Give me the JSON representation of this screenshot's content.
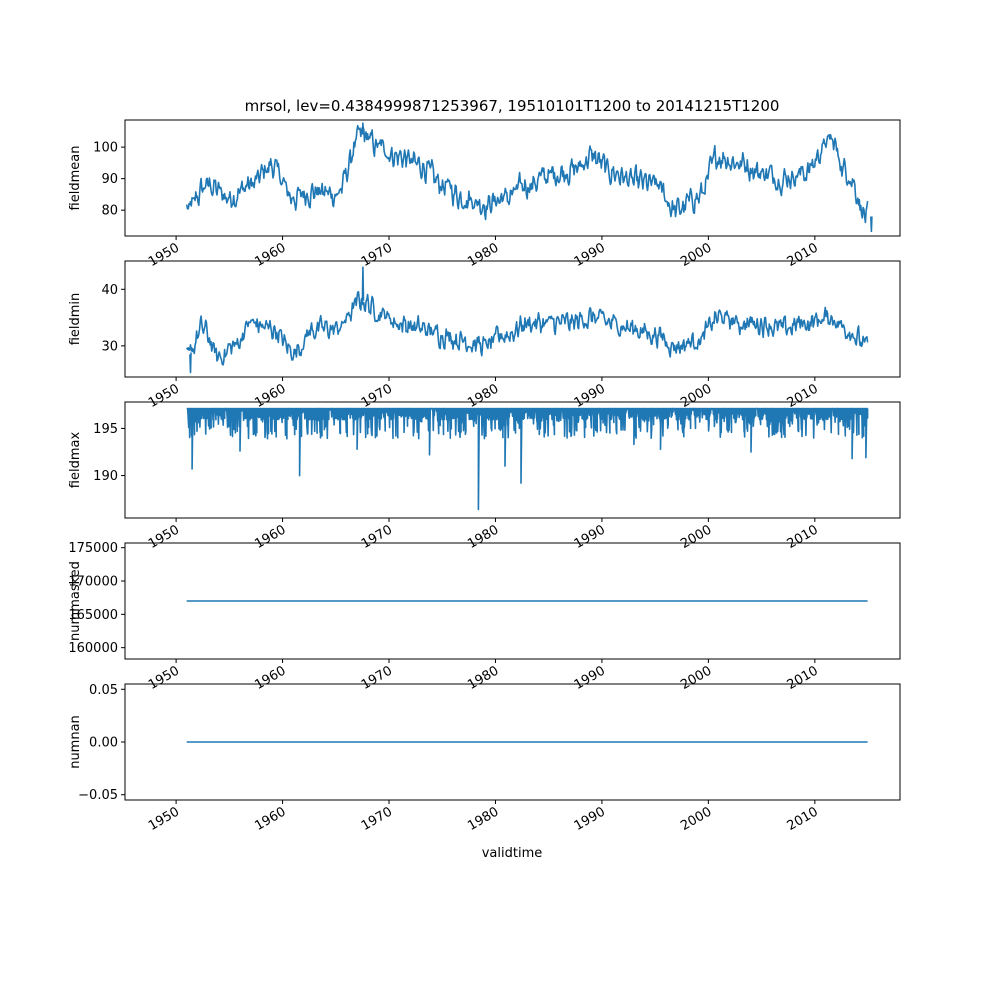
{
  "chart_data": {
    "type": "line",
    "title": "mrsol, lev=0.4384999871253967, 19510101T1200 to 20141215T1200",
    "xlabel": "validtime",
    "x_start": 1951.0,
    "x_end": 2014.96,
    "xlim": [
      1945.2,
      2018.0
    ],
    "x_ticks": [
      1950,
      1960,
      1970,
      1980,
      1990,
      2000,
      2010
    ],
    "x_ticklabels": [
      "1950",
      "1960",
      "1970",
      "1980",
      "1990",
      "2000",
      "2010"
    ],
    "series_color": "#1f77b4",
    "panels": [
      {
        "ylabel": "fieldmean",
        "ylim": [
          71.8,
          108.6
        ],
        "y_ticks": [
          80,
          90,
          100
        ],
        "y_ticklabels": [
          "80",
          "90",
          "100"
        ],
        "kind": "noisy",
        "x": [
          1951.0,
          1953.0,
          1955.0,
          1957.0,
          1959.0,
          1961.0,
          1963.0,
          1965.0,
          1967.5,
          1969.0,
          1971.0,
          1973.0,
          1975.0,
          1977.0,
          1979.0,
          1981.0,
          1983.0,
          1985.0,
          1987.5,
          1989.0,
          1991.0,
          1993.0,
          1995.0,
          1997.0,
          1999.0,
          2001.0,
          2003.0,
          2005.0,
          2007.0,
          2009.0,
          2011.5,
          2013.0,
          2014.96
        ],
        "values": [
          80,
          88,
          84,
          88,
          94,
          84,
          86,
          85,
          104,
          100,
          97,
          94,
          88,
          84,
          82,
          84,
          88,
          91,
          93,
          97,
          92,
          89,
          88,
          80,
          84,
          97,
          95,
          92,
          90,
          92,
          102,
          92,
          78
        ],
        "noise": 3.2,
        "min": 73.3,
        "max": 107.6
      },
      {
        "ylabel": "fieldmin",
        "ylim": [
          24.5,
          45.0
        ],
        "y_ticks": [
          30,
          40
        ],
        "y_ticklabels": [
          "30",
          "40"
        ],
        "kind": "noisy",
        "x": [
          1951.0,
          1952.5,
          1954.0,
          1955.5,
          1957.0,
          1959.0,
          1961.0,
          1963.0,
          1965.0,
          1967.5,
          1969.0,
          1971.0,
          1973.0,
          1975.0,
          1977.0,
          1979.0,
          1981.0,
          1983.0,
          1985.0,
          1987.0,
          1989.0,
          1991.0,
          1993.0,
          1995.0,
          1997.0,
          1999.0,
          2001.0,
          2003.0,
          2005.0,
          2007.0,
          2009.0,
          2011.5,
          2013.0,
          2014.96
        ],
        "values": [
          28,
          33,
          28,
          30,
          34,
          33,
          29,
          33,
          33,
          38,
          36,
          34,
          33,
          32,
          31,
          30,
          32,
          34,
          34,
          34,
          35,
          34,
          33,
          32,
          30,
          31,
          35,
          34,
          34,
          33,
          34,
          35,
          33,
          30
        ],
        "noise": 1.6,
        "min": 25.3,
        "max": 43.9
      },
      {
        "ylabel": "fieldmax",
        "ylim": [
          185.5,
          197.8
        ],
        "y_ticks": [
          190,
          195
        ],
        "y_ticklabels": [
          "190",
          "195"
        ],
        "kind": "spiky",
        "baseline": 197.1,
        "spikes": [
          {
            "x": 1951.5,
            "value": 190.7
          },
          {
            "x": 1956.0,
            "value": 192.6
          },
          {
            "x": 1961.6,
            "value": 190.0
          },
          {
            "x": 1967.0,
            "value": 192.8
          },
          {
            "x": 1973.8,
            "value": 192.2
          },
          {
            "x": 1978.4,
            "value": 186.4
          },
          {
            "x": 1980.9,
            "value": 191.0
          },
          {
            "x": 1982.4,
            "value": 189.2
          },
          {
            "x": 1993.0,
            "value": 193.3
          },
          {
            "x": 1995.5,
            "value": 192.8
          },
          {
            "x": 2004.0,
            "value": 192.5
          },
          {
            "x": 2013.5,
            "value": 191.8
          },
          {
            "x": 2014.8,
            "value": 191.9
          }
        ]
      },
      {
        "ylabel": "nummasked",
        "ylim": [
          158300,
          175700
        ],
        "y_ticks": [
          160000,
          165000,
          170000,
          175000
        ],
        "y_ticklabels": [
          "160000",
          "165000",
          "170000",
          "175000"
        ],
        "kind": "constant",
        "value": 167000
      },
      {
        "ylabel": "numnan",
        "ylim": [
          -0.055,
          0.055
        ],
        "y_ticks": [
          -0.05,
          0.0,
          0.05
        ],
        "y_ticklabels": [
          "−0.05",
          "0.00",
          "0.05"
        ],
        "kind": "constant",
        "value": 0.0
      }
    ]
  }
}
